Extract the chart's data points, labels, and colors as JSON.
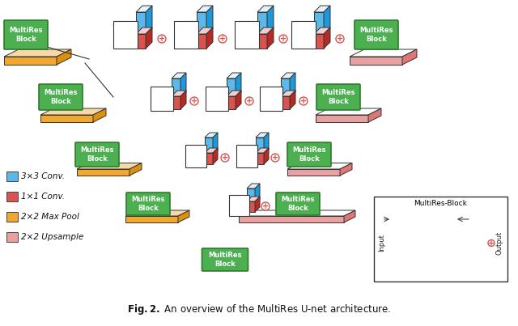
{
  "title": "Fig. 2: An overview of the MultiRes U-...",
  "caption": "Fig. 2. An overview of the MultiRes U-net architecture.",
  "bg_color": "#ffffff",
  "blue_color": "#5BB8E8",
  "red_color": "#D9534F",
  "orange_color": "#F0A830",
  "pink_color": "#E8A0A0",
  "green_box_color": "#4CAF50",
  "green_box_edge": "#2d7a2d",
  "legend_items": [
    {
      "label": "3×3 Conv.",
      "color": "#5BB8E8"
    },
    {
      "label": "1×1 Conv.",
      "color": "#D9534F"
    },
    {
      "label": "2×2 Max Pool",
      "color": "#F0A830"
    },
    {
      "label": "2×2 Upsample",
      "color": "#E8A0A0"
    }
  ]
}
